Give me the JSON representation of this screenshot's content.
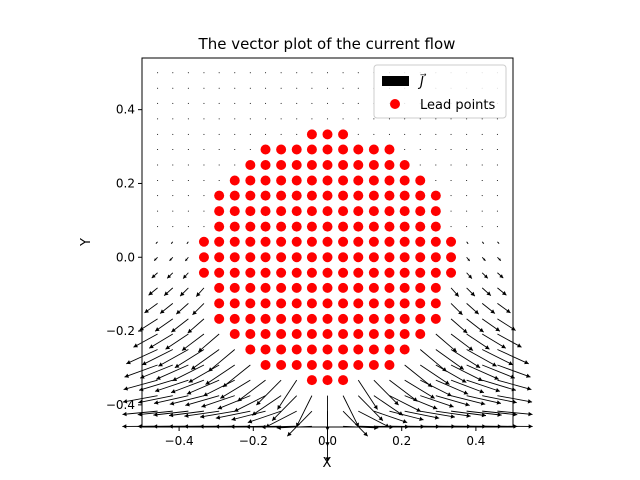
{
  "chart_data": {
    "type": "scatter",
    "title": "The vector plot of the current flow",
    "xlabel": "X",
    "ylabel": "Y",
    "xlim": [
      -0.5,
      0.5
    ],
    "ylim": [
      -0.46,
      0.54
    ],
    "xticks": [
      -0.4,
      -0.2,
      0.0,
      0.2,
      0.4
    ],
    "xtick_labels": [
      "−0.4",
      "−0.2",
      "0.0",
      "0.2",
      "0.4"
    ],
    "yticks": [
      -0.4,
      -0.2,
      0.0,
      0.2,
      0.4
    ],
    "ytick_labels": [
      "−0.4",
      "−0.2",
      "0.0",
      "0.2",
      "0.4"
    ],
    "grid": false,
    "legend": {
      "location": "top-right",
      "entries": [
        {
          "label": "J⃗",
          "marker": "quiver-arrow",
          "color": "#000000"
        },
        {
          "label": "Lead points",
          "marker": "circle",
          "color": "#ff0000"
        }
      ]
    },
    "lead_points": {
      "name": "Lead points",
      "color": "#ff0000",
      "rows": [
        {
          "y": 0.333,
          "x": [
            -0.042,
            0.0,
            0.042
          ]
        },
        {
          "y": 0.292,
          "x": [
            -0.167,
            -0.125,
            -0.083,
            -0.042,
            0.0,
            0.042,
            0.083,
            0.125,
            0.167
          ]
        },
        {
          "y": 0.25,
          "x": [
            -0.208,
            -0.167,
            -0.125,
            -0.083,
            -0.042,
            0.0,
            0.042,
            0.083,
            0.125,
            0.167,
            0.208
          ]
        },
        {
          "y": 0.208,
          "x": [
            -0.25,
            -0.208,
            -0.167,
            -0.125,
            -0.083,
            -0.042,
            0.0,
            0.042,
            0.083,
            0.125,
            0.167,
            0.208,
            0.25
          ]
        },
        {
          "y": 0.167,
          "x": [
            -0.292,
            -0.25,
            -0.208,
            -0.167,
            -0.125,
            -0.083,
            -0.042,
            0.0,
            0.042,
            0.083,
            0.125,
            0.167,
            0.208,
            0.25,
            0.292
          ]
        },
        {
          "y": 0.125,
          "x": [
            -0.292,
            -0.25,
            -0.208,
            -0.167,
            -0.125,
            -0.083,
            -0.042,
            0.0,
            0.042,
            0.083,
            0.125,
            0.167,
            0.208,
            0.25,
            0.292
          ]
        },
        {
          "y": 0.083,
          "x": [
            -0.292,
            -0.25,
            -0.208,
            -0.167,
            -0.125,
            -0.083,
            -0.042,
            0.0,
            0.042,
            0.083,
            0.125,
            0.167,
            0.208,
            0.25,
            0.292
          ]
        },
        {
          "y": 0.042,
          "x": [
            -0.333,
            -0.292,
            -0.25,
            -0.208,
            -0.167,
            -0.125,
            -0.083,
            -0.042,
            0.0,
            0.042,
            0.083,
            0.125,
            0.167,
            0.208,
            0.25,
            0.292,
            0.333
          ]
        },
        {
          "y": 0.0,
          "x": [
            -0.333,
            -0.292,
            -0.25,
            -0.208,
            -0.167,
            -0.125,
            -0.083,
            -0.042,
            0.0,
            0.042,
            0.083,
            0.125,
            0.167,
            0.208,
            0.25,
            0.292,
            0.333
          ]
        },
        {
          "y": -0.042,
          "x": [
            -0.333,
            -0.292,
            -0.25,
            -0.208,
            -0.167,
            -0.125,
            -0.083,
            -0.042,
            0.0,
            0.042,
            0.083,
            0.125,
            0.167,
            0.208,
            0.25,
            0.292,
            0.333
          ]
        },
        {
          "y": -0.083,
          "x": [
            -0.292,
            -0.25,
            -0.208,
            -0.167,
            -0.125,
            -0.083,
            -0.042,
            0.0,
            0.042,
            0.083,
            0.125,
            0.167,
            0.208,
            0.25,
            0.292
          ]
        },
        {
          "y": -0.125,
          "x": [
            -0.292,
            -0.25,
            -0.208,
            -0.167,
            -0.125,
            -0.083,
            -0.042,
            0.0,
            0.042,
            0.083,
            0.125,
            0.167,
            0.208,
            0.25,
            0.292
          ]
        },
        {
          "y": -0.167,
          "x": [
            -0.292,
            -0.25,
            -0.208,
            -0.167,
            -0.125,
            -0.083,
            -0.042,
            0.0,
            0.042,
            0.083,
            0.125,
            0.167,
            0.208,
            0.25,
            0.292
          ]
        },
        {
          "y": -0.208,
          "x": [
            -0.25,
            -0.208,
            -0.167,
            -0.125,
            -0.083,
            -0.042,
            0.0,
            0.042,
            0.083,
            0.125,
            0.167,
            0.208,
            0.25
          ]
        },
        {
          "y": -0.25,
          "x": [
            -0.208,
            -0.167,
            -0.125,
            -0.083,
            -0.042,
            0.0,
            0.042,
            0.083,
            0.125,
            0.167,
            0.208
          ]
        },
        {
          "y": -0.292,
          "x": [
            -0.167,
            -0.125,
            -0.083,
            -0.042,
            0.0,
            0.042,
            0.083,
            0.125,
            0.167
          ]
        },
        {
          "y": -0.333,
          "x": [
            -0.042,
            0.0,
            0.042
          ]
        }
      ]
    },
    "current_field": {
      "name": "J⃗",
      "color": "#000000",
      "grid_x": [
        -0.458,
        -0.417,
        -0.375,
        -0.333,
        -0.292,
        -0.25,
        -0.208,
        -0.167,
        -0.125,
        -0.083,
        -0.042,
        0.0,
        0.042,
        0.083,
        0.125,
        0.167,
        0.208,
        0.25,
        0.292,
        0.333,
        0.375,
        0.417,
        0.458
      ],
      "grid_y": [
        -0.458,
        -0.417,
        -0.375,
        -0.333,
        -0.292,
        -0.25,
        -0.208,
        -0.167,
        -0.125,
        -0.083,
        -0.042,
        0.0,
        0.042,
        0.083,
        0.125,
        0.167,
        0.208,
        0.25,
        0.292,
        0.333,
        0.375,
        0.417,
        0.458,
        0.5
      ],
      "flow_direction": "downward, converging toward bottom edge below the lead points"
    }
  }
}
